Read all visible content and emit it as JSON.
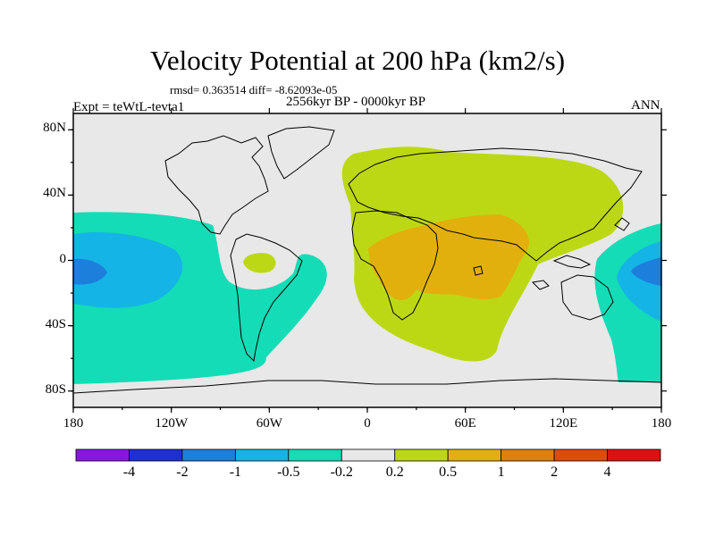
{
  "title": "Velocity Potential at 200 hPa (km2/s)",
  "stats_text": "rmsd= 0.363514 diff= -8.62093e-05",
  "period": "2556kyr BP - 0000kyr BP",
  "experiment": "Expt = teWtL-tevta1",
  "season": "ANN",
  "lat_ticks": [
    {
      "label": "80N",
      "lat": 80
    },
    {
      "label": "40N",
      "lat": 40
    },
    {
      "label": "0",
      "lat": 0
    },
    {
      "label": "40S",
      "lat": -40
    },
    {
      "label": "80S",
      "lat": -80
    }
  ],
  "lon_ticks": [
    {
      "label": "180",
      "lon": -180
    },
    {
      "label": "120W",
      "lon": -120
    },
    {
      "label": "60W",
      "lon": -60
    },
    {
      "label": "0",
      "lon": 0
    },
    {
      "label": "60E",
      "lon": 60
    },
    {
      "label": "120E",
      "lon": 120
    },
    {
      "label": "180",
      "lon": 180
    }
  ],
  "colorbar": {
    "colors": [
      "#8a14e6",
      "#1f2fd6",
      "#1d7fdc",
      "#14b4e6",
      "#14dcb6",
      "#e8e8e8",
      "#bcd814",
      "#e2b00c",
      "#de800c",
      "#e04a0a",
      "#e01010"
    ],
    "labels": [
      "-4",
      "-2",
      "-1",
      "-0.5",
      "-0.2",
      "0.2",
      "0.5",
      "1",
      "2",
      "4"
    ]
  },
  "fields": {
    "background": "#e8e8e8",
    "pos_weak": "#bcd814",
    "pos_mid": "#e2b00c",
    "neg_weak": "#14dcb6",
    "neg_mid": "#14b4e6",
    "neg_strong": "#1d7fdc"
  }
}
